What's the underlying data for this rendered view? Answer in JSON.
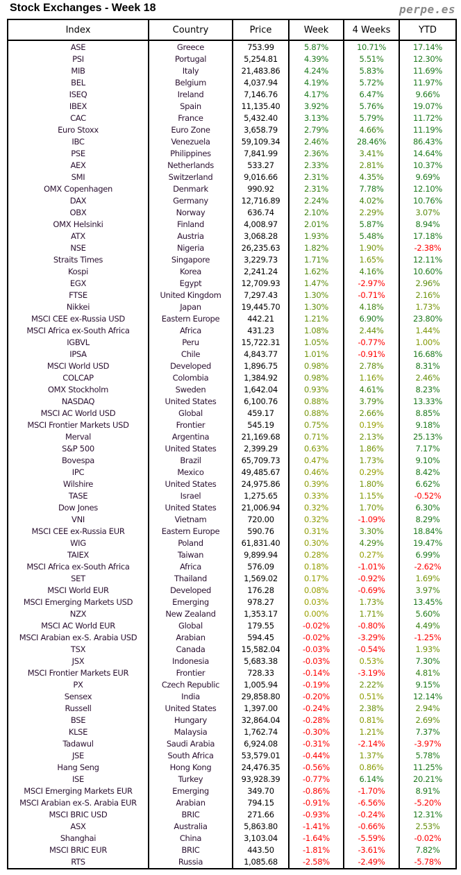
{
  "title": "Stock Exchanges - Week 18",
  "brand": "perpe.es",
  "columns": [
    "Index",
    "Country",
    "Price",
    "Week",
    "4 Weeks",
    "YTD"
  ],
  "colors": {
    "positive_strong": "#1e7a1e",
    "positive_weak": "#9aa000",
    "negative": "#ff0000"
  },
  "rows": [
    [
      "ASE",
      "Greece",
      "753.99",
      "5.87%",
      "10.71%",
      "17.14%"
    ],
    [
      "PSI",
      "Portugal",
      "5,254.81",
      "4.39%",
      "5.51%",
      "12.30%"
    ],
    [
      "MIB",
      "Italy",
      "21,483.86",
      "4.24%",
      "5.83%",
      "11.69%"
    ],
    [
      "BEL",
      "Belgium",
      "4,037.94",
      "4.19%",
      "5.72%",
      "11.97%"
    ],
    [
      "ISEQ",
      "Ireland",
      "7,146.76",
      "4.17%",
      "6.47%",
      "9.66%"
    ],
    [
      "IBEX",
      "Spain",
      "11,135.40",
      "3.92%",
      "5.76%",
      "19.07%"
    ],
    [
      "CAC",
      "France",
      "5,432.40",
      "3.13%",
      "5.79%",
      "11.72%"
    ],
    [
      "Euro Stoxx",
      "Euro Zone",
      "3,658.79",
      "2.79%",
      "4.66%",
      "11.19%"
    ],
    [
      "IBC",
      "Venezuela",
      "59,109.34",
      "2.46%",
      "28.46%",
      "86.43%"
    ],
    [
      "PSE",
      "Philippines",
      "7,841.99",
      "2.36%",
      "3.41%",
      "14.64%"
    ],
    [
      "AEX",
      "Netherlands",
      "533.27",
      "2.33%",
      "2.81%",
      "10.37%"
    ],
    [
      "SMI",
      "Switzerland",
      "9,016.66",
      "2.31%",
      "4.35%",
      "9.69%"
    ],
    [
      "OMX Copenhagen",
      "Denmark",
      "990.92",
      "2.31%",
      "7.78%",
      "12.10%"
    ],
    [
      "DAX",
      "Germany",
      "12,716.89",
      "2.24%",
      "4.02%",
      "10.76%"
    ],
    [
      "OBX",
      "Norway",
      "636.74",
      "2.10%",
      "2.29%",
      "3.07%"
    ],
    [
      "OMX Helsinki",
      "Finland",
      "4,008.97",
      "2.01%",
      "5.87%",
      "8.94%"
    ],
    [
      "ATX",
      "Austria",
      "3,068.28",
      "1.93%",
      "5.48%",
      "17.18%"
    ],
    [
      "NSE",
      "Nigeria",
      "26,235.63",
      "1.82%",
      "1.90%",
      "-2.38%"
    ],
    [
      "Straits Times",
      "Singapore",
      "3,229.73",
      "1.71%",
      "1.65%",
      "12.11%"
    ],
    [
      "Kospi",
      "Korea",
      "2,241.24",
      "1.62%",
      "4.16%",
      "10.60%"
    ],
    [
      "EGX",
      "Egypt",
      "12,709.93",
      "1.47%",
      "-2.97%",
      "2.96%"
    ],
    [
      "FTSE",
      "United Kingdom",
      "7,297.43",
      "1.30%",
      "-0.71%",
      "2.16%"
    ],
    [
      "Nikkei",
      "Japan",
      "19,445.70",
      "1.30%",
      "4.18%",
      "1.73%"
    ],
    [
      "MSCI CEE ex-Russia USD",
      "Eastern Europe",
      "442.21",
      "1.21%",
      "6.90%",
      "23.80%"
    ],
    [
      "MSCI Africa ex-South Africa",
      "Africa",
      "431.23",
      "1.08%",
      "2.44%",
      "1.44%"
    ],
    [
      "IGBVL",
      "Peru",
      "15,722.31",
      "1.05%",
      "-0.77%",
      "1.00%"
    ],
    [
      "IPSA",
      "Chile",
      "4,843.77",
      "1.01%",
      "-0.91%",
      "16.68%"
    ],
    [
      "MSCI World USD",
      "Developed",
      "1,896.75",
      "0.98%",
      "2.78%",
      "8.31%"
    ],
    [
      "COLCAP",
      "Colombia",
      "1,384.92",
      "0.98%",
      "1.16%",
      "2.46%"
    ],
    [
      "OMX Stockholm",
      "Sweden",
      "1,642.04",
      "0.93%",
      "4.61%",
      "8.23%"
    ],
    [
      "NASDAQ",
      "United States",
      "6,100.76",
      "0.88%",
      "3.79%",
      "13.33%"
    ],
    [
      "MSCI AC World USD",
      "Global",
      "459.17",
      "0.88%",
      "2.66%",
      "8.85%"
    ],
    [
      "MSCI Frontier Markets USD",
      "Frontier",
      "545.19",
      "0.75%",
      "0.19%",
      "9.18%"
    ],
    [
      "Merval",
      "Argentina",
      "21,169.68",
      "0.71%",
      "2.13%",
      "25.13%"
    ],
    [
      "S&P 500",
      "United States",
      "2,399.29",
      "0.63%",
      "1.86%",
      "7.17%"
    ],
    [
      "Bovespa",
      "Brazil",
      "65,709.73",
      "0.47%",
      "1.73%",
      "9.10%"
    ],
    [
      "IPC",
      "Mexico",
      "49,485.67",
      "0.46%",
      "0.29%",
      "8.42%"
    ],
    [
      "Wilshire",
      "United States",
      "24,975.86",
      "0.39%",
      "1.80%",
      "6.62%"
    ],
    [
      "TASE",
      "Israel",
      "1,275.65",
      "0.33%",
      "1.15%",
      "-0.52%"
    ],
    [
      "Dow Jones",
      "United States",
      "21,006.94",
      "0.32%",
      "1.70%",
      "6.30%"
    ],
    [
      "VNI",
      "Vietnam",
      "720.00",
      "0.32%",
      "-1.09%",
      "8.29%"
    ],
    [
      "MSCI CEE ex-Russia EUR",
      "Eastern Europe",
      "590.76",
      "0.31%",
      "3.30%",
      "18.84%"
    ],
    [
      "WIG",
      "Poland",
      "61,831.40",
      "0.30%",
      "4.29%",
      "19.47%"
    ],
    [
      "TAIEX",
      "Taiwan",
      "9,899.94",
      "0.28%",
      "0.27%",
      "6.99%"
    ],
    [
      "MSCI Africa ex-South Africa",
      "Africa",
      "576.09",
      "0.18%",
      "-1.01%",
      "-2.62%"
    ],
    [
      "SET",
      "Thailand",
      "1,569.02",
      "0.17%",
      "-0.92%",
      "1.69%"
    ],
    [
      "MSCI World EUR",
      "Developed",
      "176.28",
      "0.08%",
      "-0.69%",
      "3.97%"
    ],
    [
      "MSCI Emerging Markets USD",
      "Emerging",
      "978.27",
      "0.03%",
      "1.73%",
      "13.45%"
    ],
    [
      "NZX",
      "New Zealand",
      "1,353.17",
      "0.00%",
      "1.71%",
      "5.60%"
    ],
    [
      "MSCI AC World EUR",
      "Global",
      "179.55",
      "-0.02%",
      "-0.80%",
      "4.49%"
    ],
    [
      "MSCI Arabian ex-S. Arabia USD",
      "Arabian",
      "594.45",
      "-0.02%",
      "-3.29%",
      "-1.25%"
    ],
    [
      "TSX",
      "Canada",
      "15,582.04",
      "-0.03%",
      "-0.54%",
      "1.93%"
    ],
    [
      "JSX",
      "Indonesia",
      "5,683.38",
      "-0.03%",
      "0.53%",
      "7.30%"
    ],
    [
      "MSCI Frontier Markets EUR",
      "Frontier",
      "728.33",
      "-0.14%",
      "-3.19%",
      "4.81%"
    ],
    [
      "PX",
      "Czech Republic",
      "1,005.94",
      "-0.19%",
      "2.22%",
      "9.15%"
    ],
    [
      "Sensex",
      "India",
      "29,858.80",
      "-0.20%",
      "0.51%",
      "12.14%"
    ],
    [
      "Russell",
      "United States",
      "1,397.00",
      "-0.24%",
      "2.38%",
      "2.94%"
    ],
    [
      "BSE",
      "Hungary",
      "32,864.04",
      "-0.28%",
      "0.81%",
      "2.69%"
    ],
    [
      "KLSE",
      "Malaysia",
      "1,762.74",
      "-0.30%",
      "1.21%",
      "7.37%"
    ],
    [
      "Tadawul",
      "Saudi Arabia",
      "6,924.08",
      "-0.31%",
      "-2.14%",
      "-3.97%"
    ],
    [
      "JSE",
      "South Africa",
      "53,579.01",
      "-0.44%",
      "1.37%",
      "5.78%"
    ],
    [
      "Hang Seng",
      "Hong Kong",
      "24,476.35",
      "-0.56%",
      "0.86%",
      "11.25%"
    ],
    [
      "ISE",
      "Turkey",
      "93,928.39",
      "-0.77%",
      "6.14%",
      "20.21%"
    ],
    [
      "MSCI Emerging Markets EUR",
      "Emerging",
      "349.70",
      "-0.86%",
      "-1.70%",
      "8.91%"
    ],
    [
      "MSCI Arabian ex-S. Arabia EUR",
      "Arabian",
      "794.15",
      "-0.91%",
      "-6.56%",
      "-5.20%"
    ],
    [
      "MSCI BRIC USD",
      "BRIC",
      "271.66",
      "-0.93%",
      "-0.24%",
      "12.31%"
    ],
    [
      "ASX",
      "Australia",
      "5,863.80",
      "-1.41%",
      "-0.66%",
      "2.53%"
    ],
    [
      "Shanghai",
      "China",
      "3,103.04",
      "-1.64%",
      "-5.59%",
      "-0.02%"
    ],
    [
      "MSCI BRIC EUR",
      "BRIC",
      "443.50",
      "-1.81%",
      "-3.61%",
      "7.82%"
    ],
    [
      "RTS",
      "Russia",
      "1,085.68",
      "-2.58%",
      "-2.49%",
      "-5.78%"
    ]
  ]
}
